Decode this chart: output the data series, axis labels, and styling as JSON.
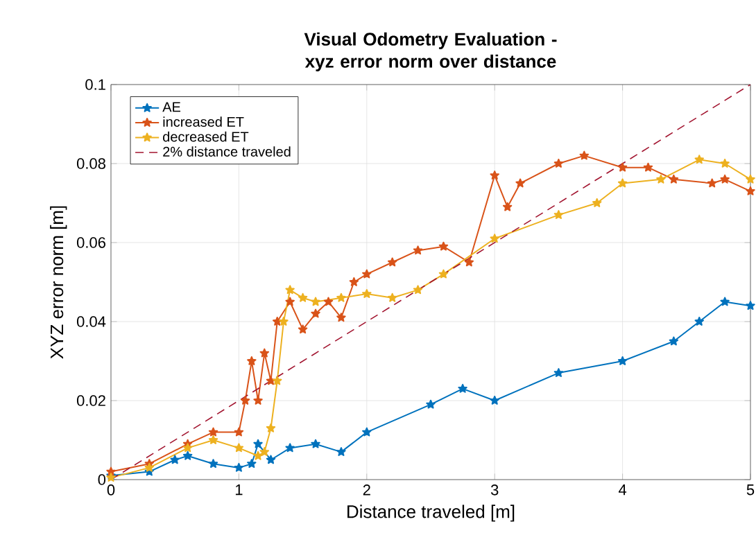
{
  "chart_data": {
    "type": "line",
    "title": "Visual Odometry Evaluation - xyz error norm over distance",
    "xlabel": "Distance traveled [m]",
    "ylabel": "XYZ error norm [m]",
    "xlim": [
      0,
      5
    ],
    "ylim": [
      0,
      0.1
    ],
    "xticks": [
      0,
      1,
      2,
      3,
      4,
      5
    ],
    "yticks": [
      0,
      0.02,
      0.04,
      0.06,
      0.08,
      0.1
    ],
    "grid": true,
    "legend": "top left",
    "marker": "star",
    "series": [
      {
        "name": "AE",
        "color": "#0072bd",
        "x": [
          0,
          0.3,
          0.5,
          0.6,
          0.8,
          1.0,
          1.1,
          1.15,
          1.25,
          1.4,
          1.6,
          1.8,
          2.0,
          2.5,
          2.75,
          3.0,
          3.5,
          4.0,
          4.4,
          4.6,
          4.8,
          5.0
        ],
        "values": [
          0.001,
          0.002,
          0.005,
          0.006,
          0.004,
          0.003,
          0.004,
          0.009,
          0.005,
          0.008,
          0.009,
          0.007,
          0.012,
          0.019,
          0.023,
          0.02,
          0.027,
          0.03,
          0.035,
          0.04,
          0.045,
          0.044
        ]
      },
      {
        "name": "increased ET",
        "color": "#d95319",
        "x": [
          0,
          0.3,
          0.6,
          0.8,
          1.0,
          1.05,
          1.1,
          1.15,
          1.2,
          1.25,
          1.3,
          1.4,
          1.5,
          1.6,
          1.7,
          1.8,
          1.9,
          2.0,
          2.2,
          2.4,
          2.6,
          2.8,
          3.0,
          3.1,
          3.2,
          3.5,
          3.7,
          4.0,
          4.2,
          4.4,
          4.7,
          4.8,
          5.0
        ],
        "values": [
          0.002,
          0.004,
          0.009,
          0.012,
          0.012,
          0.02,
          0.03,
          0.02,
          0.032,
          0.025,
          0.04,
          0.045,
          0.038,
          0.042,
          0.045,
          0.041,
          0.05,
          0.052,
          0.055,
          0.058,
          0.059,
          0.055,
          0.077,
          0.069,
          0.075,
          0.08,
          0.082,
          0.079,
          0.079,
          0.076,
          0.075,
          0.076,
          0.073
        ]
      },
      {
        "name": "decreased ET",
        "color": "#edb120",
        "x": [
          0,
          0.3,
          0.6,
          0.8,
          1.0,
          1.15,
          1.2,
          1.25,
          1.3,
          1.35,
          1.4,
          1.5,
          1.6,
          1.8,
          2.0,
          2.2,
          2.4,
          2.6,
          3.0,
          3.5,
          3.8,
          4.0,
          4.3,
          4.6,
          4.8,
          5.0
        ],
        "values": [
          0.0005,
          0.003,
          0.008,
          0.01,
          0.008,
          0.006,
          0.007,
          0.013,
          0.025,
          0.04,
          0.048,
          0.046,
          0.045,
          0.046,
          0.047,
          0.046,
          0.048,
          0.052,
          0.061,
          0.067,
          0.07,
          0.075,
          0.076,
          0.081,
          0.08,
          0.076
        ]
      },
      {
        "name": "2% distance traveled",
        "color": "#a2142f",
        "x": [
          0,
          5
        ],
        "values": [
          0,
          0.1
        ],
        "line_style": "dashed",
        "marker": "none"
      }
    ]
  }
}
